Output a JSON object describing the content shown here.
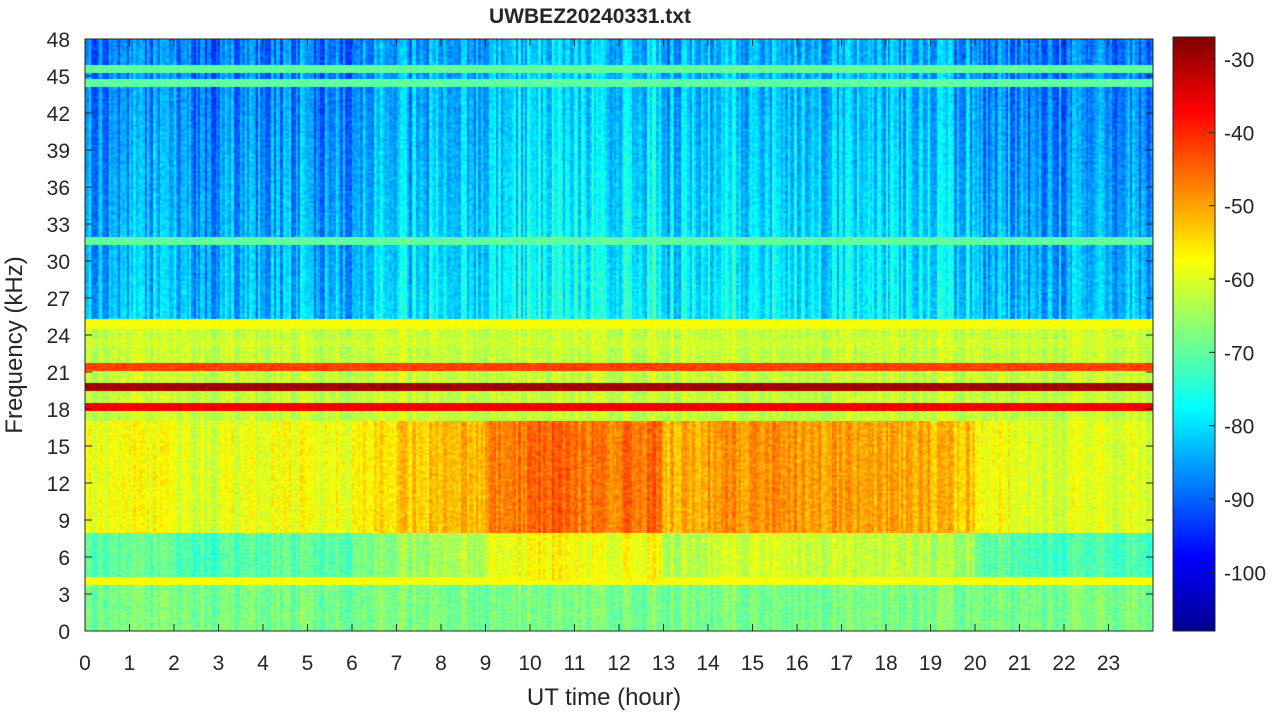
{
  "chart_data": {
    "type": "heatmap",
    "title": "UWBEZ20240331.txt",
    "xlabel": "UT time (hour)",
    "ylabel": "Frequency (kHz)",
    "xlim": [
      0,
      24
    ],
    "ylim": [
      0,
      48
    ],
    "x_ticks": [
      "0",
      "1",
      "2",
      "3",
      "4",
      "5",
      "6",
      "7",
      "8",
      "9",
      "10",
      "11",
      "12",
      "13",
      "14",
      "15",
      "16",
      "17",
      "18",
      "19",
      "20",
      "21",
      "22",
      "23"
    ],
    "y_ticks": [
      "0",
      "3",
      "6",
      "9",
      "12",
      "15",
      "18",
      "21",
      "24",
      "27",
      "30",
      "33",
      "36",
      "39",
      "42",
      "45",
      "48"
    ],
    "colorbar": {
      "colormap": "jet",
      "clim": [
        -108,
        -27
      ],
      "ticks": [
        "-30",
        "-40",
        "-50",
        "-60",
        "-70",
        "-80",
        "-90",
        "-100"
      ]
    },
    "narrowband_lines_khz": [
      {
        "freq": 19.8,
        "level_db": -30
      },
      {
        "freq": 18.2,
        "level_db": -36
      },
      {
        "freq": 21.4,
        "level_db": -42
      },
      {
        "freq": 24.9,
        "level_db": -58
      },
      {
        "freq": 23.4,
        "level_db": -62
      },
      {
        "freq": 45.6,
        "level_db": -70
      },
      {
        "freq": 44.4,
        "level_db": -70
      },
      {
        "freq": 31.6,
        "level_db": -70
      },
      {
        "freq": 4.0,
        "level_db": -58
      }
    ],
    "background_profile_by_band": [
      {
        "band_khz": [
          0,
          4
        ],
        "level_db": -68
      },
      {
        "band_khz": [
          4,
          8
        ],
        "level_db": -70
      },
      {
        "band_khz": [
          8,
          17
        ],
        "level_db": -58
      },
      {
        "band_khz": [
          17,
          25
        ],
        "level_db": -62
      },
      {
        "band_khz": [
          25,
          48
        ],
        "level_db": -82
      }
    ],
    "hourly_activity_db": [
      -58,
      -58,
      -60,
      -59,
      -58,
      -58,
      -56,
      -54,
      -52,
      -48,
      -46,
      -48,
      -47,
      -52,
      -50,
      -49,
      -50,
      -51,
      -51,
      -53,
      -58,
      -60,
      -60,
      -60
    ]
  }
}
